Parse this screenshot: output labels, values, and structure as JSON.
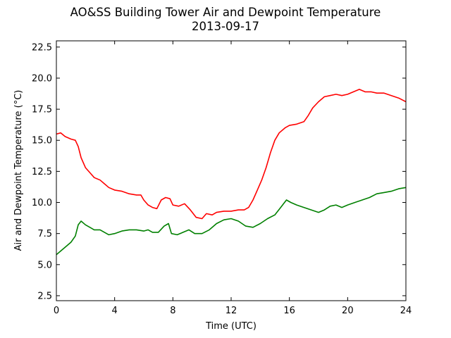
{
  "chart_data": {
    "type": "line",
    "title": [
      "AO&SS Building Tower Air and Dewpoint Temperature",
      "2013-09-17"
    ],
    "xlabel": "Time (UTC)",
    "ylabel": "Air and Dewpoint Temperature (°C)",
    "xlim": [
      0,
      24
    ],
    "ylim": [
      2.1,
      23.0
    ],
    "xticks": [
      0,
      4,
      8,
      12,
      16,
      20,
      24
    ],
    "xtick_labels": [
      "0",
      "4",
      "8",
      "12",
      "16",
      "20",
      "24"
    ],
    "yticks": [
      2.5,
      5.0,
      7.5,
      10.0,
      12.5,
      15.0,
      17.5,
      20.0,
      22.5
    ],
    "ytick_labels": [
      "2.5",
      "5.0",
      "7.5",
      "10.0",
      "12.5",
      "15.0",
      "17.5",
      "20.0",
      "22.5"
    ],
    "grid": false,
    "legend": "none",
    "series": [
      {
        "color": "#ff0000",
        "points": [
          [
            0,
            15.5
          ],
          [
            0.3,
            15.6
          ],
          [
            0.6,
            15.3
          ],
          [
            1,
            15.1
          ],
          [
            1.3,
            15.0
          ],
          [
            1.5,
            14.5
          ],
          [
            1.7,
            13.6
          ],
          [
            2,
            12.8
          ],
          [
            2.3,
            12.4
          ],
          [
            2.6,
            12.0
          ],
          [
            3,
            11.8
          ],
          [
            3.3,
            11.5
          ],
          [
            3.6,
            11.2
          ],
          [
            4,
            11.0
          ],
          [
            4.5,
            10.9
          ],
          [
            5,
            10.7
          ],
          [
            5.5,
            10.6
          ],
          [
            5.8,
            10.6
          ],
          [
            6,
            10.2
          ],
          [
            6.3,
            9.8
          ],
          [
            6.6,
            9.6
          ],
          [
            6.9,
            9.5
          ],
          [
            7.2,
            10.2
          ],
          [
            7.5,
            10.4
          ],
          [
            7.8,
            10.3
          ],
          [
            8,
            9.8
          ],
          [
            8.4,
            9.7
          ],
          [
            8.8,
            9.9
          ],
          [
            9.2,
            9.4
          ],
          [
            9.6,
            8.8
          ],
          [
            10,
            8.7
          ],
          [
            10.3,
            9.1
          ],
          [
            10.7,
            9.0
          ],
          [
            11,
            9.2
          ],
          [
            11.5,
            9.3
          ],
          [
            12,
            9.3
          ],
          [
            12.5,
            9.4
          ],
          [
            12.9,
            9.4
          ],
          [
            13.2,
            9.6
          ],
          [
            13.5,
            10.2
          ],
          [
            13.8,
            11.0
          ],
          [
            14.1,
            11.8
          ],
          [
            14.4,
            12.8
          ],
          [
            14.7,
            14.0
          ],
          [
            15,
            15.0
          ],
          [
            15.3,
            15.6
          ],
          [
            15.7,
            16.0
          ],
          [
            16,
            16.2
          ],
          [
            16.5,
            16.3
          ],
          [
            17,
            16.5
          ],
          [
            17.3,
            17.0
          ],
          [
            17.6,
            17.6
          ],
          [
            18,
            18.1
          ],
          [
            18.4,
            18.5
          ],
          [
            18.8,
            18.6
          ],
          [
            19.2,
            18.7
          ],
          [
            19.6,
            18.6
          ],
          [
            20,
            18.7
          ],
          [
            20.4,
            18.9
          ],
          [
            20.8,
            19.1
          ],
          [
            21.2,
            18.9
          ],
          [
            21.6,
            18.9
          ],
          [
            22,
            18.8
          ],
          [
            22.5,
            18.8
          ],
          [
            23,
            18.6
          ],
          [
            23.5,
            18.4
          ],
          [
            24,
            18.1
          ]
        ]
      },
      {
        "color": "#008000",
        "points": [
          [
            0,
            5.8
          ],
          [
            0.3,
            6.1
          ],
          [
            0.6,
            6.4
          ],
          [
            1,
            6.8
          ],
          [
            1.3,
            7.3
          ],
          [
            1.5,
            8.2
          ],
          [
            1.7,
            8.5
          ],
          [
            2,
            8.2
          ],
          [
            2.3,
            8.0
          ],
          [
            2.6,
            7.8
          ],
          [
            3,
            7.8
          ],
          [
            3.3,
            7.6
          ],
          [
            3.6,
            7.4
          ],
          [
            4,
            7.5
          ],
          [
            4.5,
            7.7
          ],
          [
            5,
            7.8
          ],
          [
            5.5,
            7.8
          ],
          [
            6,
            7.7
          ],
          [
            6.3,
            7.8
          ],
          [
            6.6,
            7.6
          ],
          [
            7,
            7.6
          ],
          [
            7.4,
            8.1
          ],
          [
            7.7,
            8.3
          ],
          [
            7.9,
            7.5
          ],
          [
            8.3,
            7.4
          ],
          [
            8.7,
            7.6
          ],
          [
            9.1,
            7.8
          ],
          [
            9.5,
            7.5
          ],
          [
            10,
            7.5
          ],
          [
            10.5,
            7.8
          ],
          [
            11,
            8.3
          ],
          [
            11.5,
            8.6
          ],
          [
            12,
            8.7
          ],
          [
            12.5,
            8.5
          ],
          [
            13,
            8.1
          ],
          [
            13.5,
            8.0
          ],
          [
            14,
            8.3
          ],
          [
            14.5,
            8.7
          ],
          [
            15,
            9.0
          ],
          [
            15.4,
            9.6
          ],
          [
            15.8,
            10.2
          ],
          [
            16.1,
            10.0
          ],
          [
            16.5,
            9.8
          ],
          [
            17,
            9.6
          ],
          [
            17.5,
            9.4
          ],
          [
            18,
            9.2
          ],
          [
            18.4,
            9.4
          ],
          [
            18.8,
            9.7
          ],
          [
            19.2,
            9.8
          ],
          [
            19.6,
            9.6
          ],
          [
            20,
            9.8
          ],
          [
            20.5,
            10.0
          ],
          [
            21,
            10.2
          ],
          [
            21.5,
            10.4
          ],
          [
            22,
            10.7
          ],
          [
            22.5,
            10.8
          ],
          [
            23,
            10.9
          ],
          [
            23.5,
            11.1
          ],
          [
            24,
            11.2
          ]
        ]
      }
    ]
  }
}
